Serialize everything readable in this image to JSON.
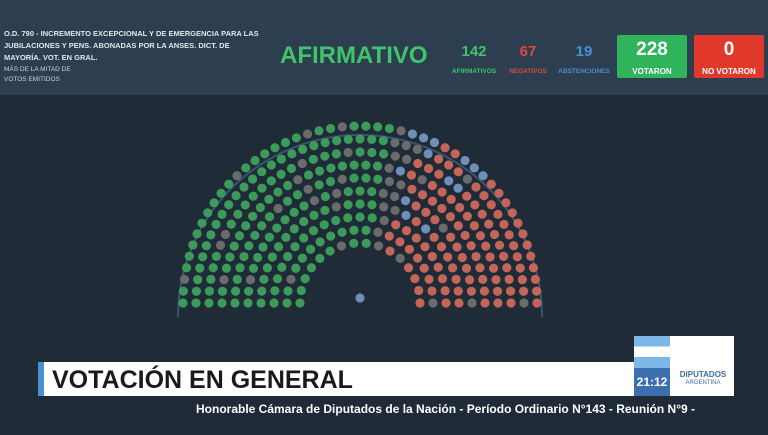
{
  "header": {
    "description": "O.D. 790 - INCREMENTO EXCEPCIONAL Y DE EMERGENCIA PARA LAS JUBILACIONES Y PENS. ABONADAS POR LA ANSES. DICT. DE MAYORÍA. VOT. EN GRAL.",
    "note": "MÁS DE LA MITAD DE VOTOS EMITIDOS",
    "result": "AFIRMATIVO",
    "counts": [
      {
        "value": 142,
        "label": "AFIRMATIVOS"
      },
      {
        "value": 67,
        "label": "NEGATIVOS"
      },
      {
        "value": 19,
        "label": "ABSTENCIONES"
      }
    ],
    "totals": [
      {
        "value": 228,
        "label": "VOTARON"
      },
      {
        "value": 0,
        "label": "NO VOTARON"
      }
    ]
  },
  "banner": {
    "title": "VOTACIÓN EN GENERAL",
    "time": "21:12",
    "logo": "DIPUTADOS",
    "logo_sub": "ARGENTINA"
  },
  "ticker": "Honorable Cámara de Diputados de la Nación - Período Ordinario N°143 - Reunión N°9 -"
}
